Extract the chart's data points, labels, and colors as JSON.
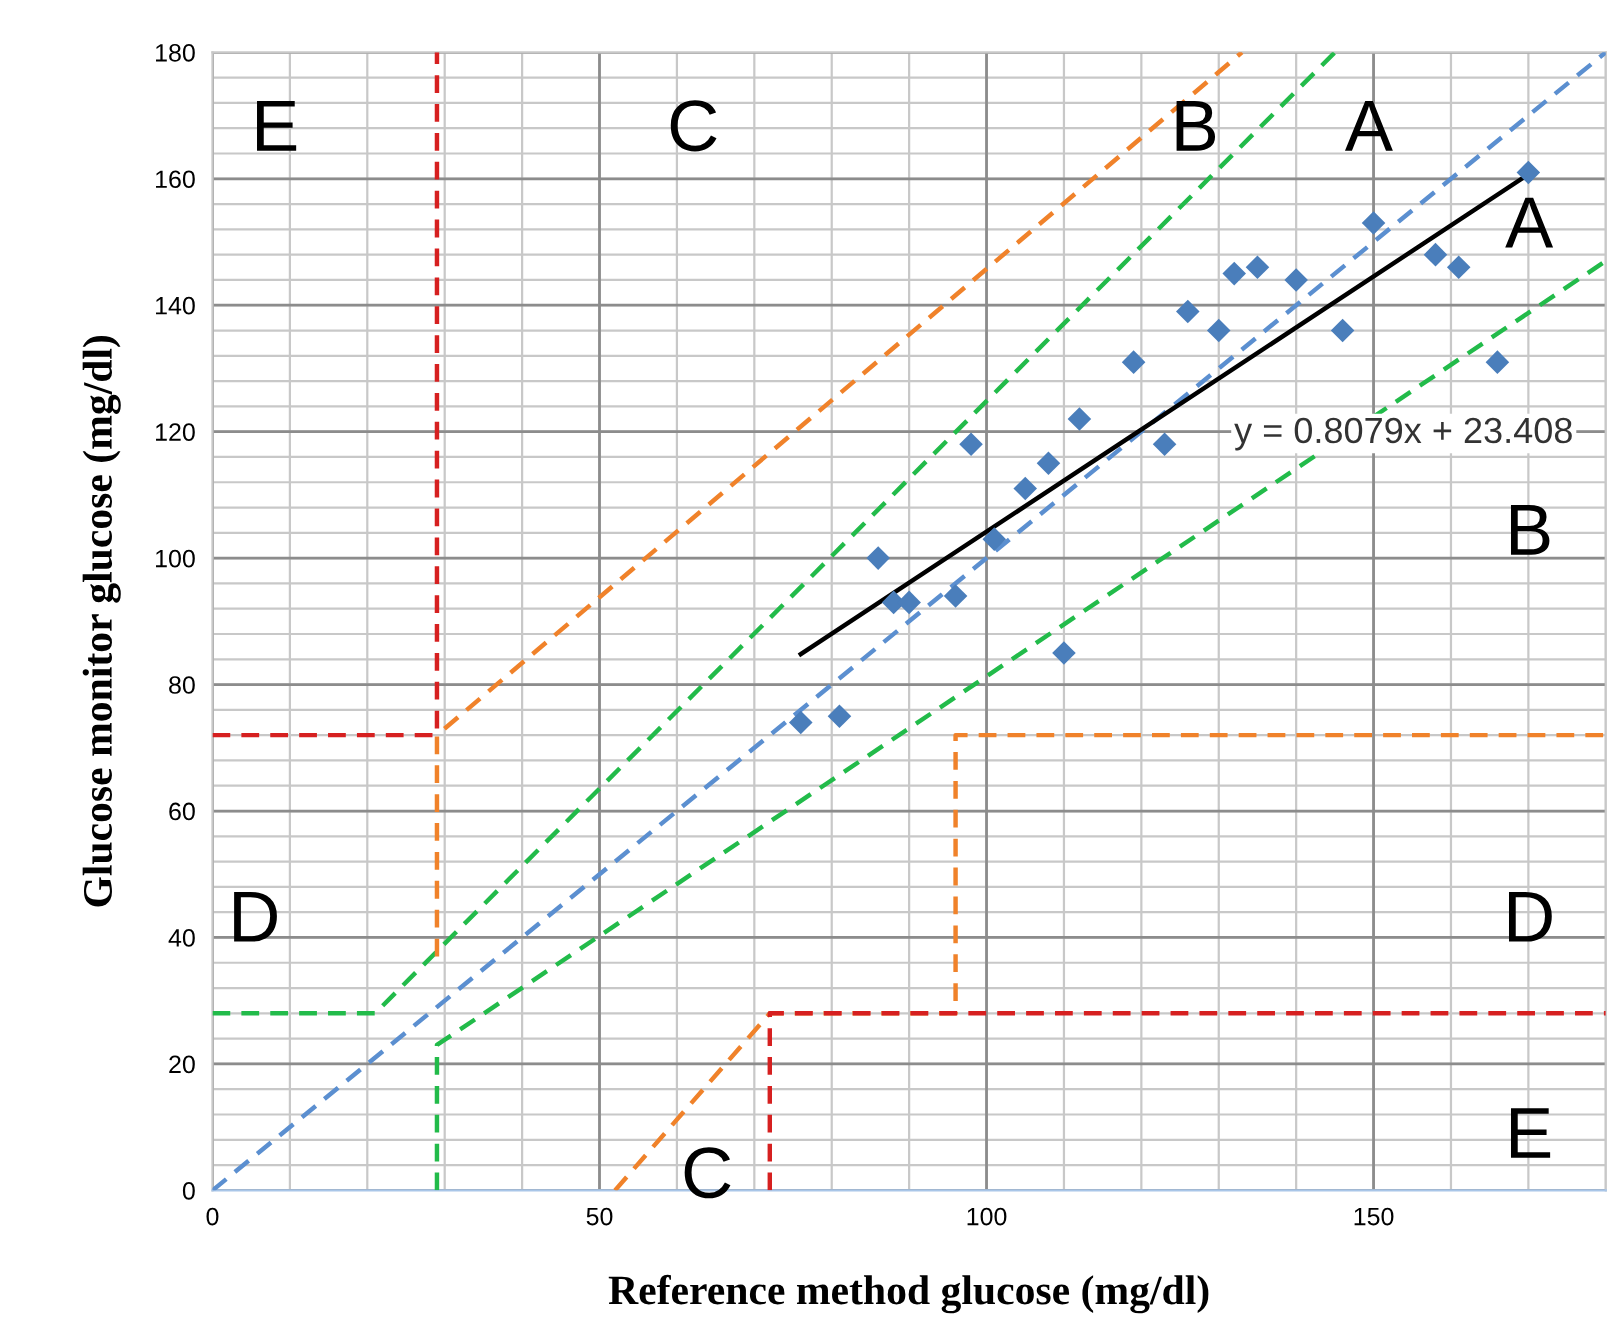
{
  "chart_data": {
    "type": "scatter",
    "xlabel": "Reference method glucose (mg/dl)",
    "ylabel": "Glucose monitor glucose (mg/dl)",
    "xlim": [
      0,
      180
    ],
    "ylim": [
      0,
      180
    ],
    "xticks": [
      0,
      50,
      100,
      150
    ],
    "yticks": [
      0,
      20,
      40,
      60,
      80,
      100,
      120,
      140,
      160,
      180
    ],
    "grid": true,
    "legend": false,
    "series": [
      {
        "type": "line",
        "color": "#5b8fd0",
        "line_style": "dashed",
        "marker": "none",
        "x": [
          0,
          180
        ],
        "values": [
          0,
          180
        ]
      },
      {
        "type": "line",
        "color": "#22bb4a",
        "line_style": "dashed",
        "marker": "none",
        "x": [
          0,
          21,
          145
        ],
        "values": [
          28,
          28,
          180
        ]
      },
      {
        "type": "line",
        "color": "#22bb4a",
        "line_style": "dashed",
        "marker": "none",
        "x": [
          29,
          29,
          180
        ],
        "values": [
          0,
          23,
          147
        ]
      },
      {
        "type": "line",
        "color": "#f0822a",
        "line_style": "dashed",
        "marker": "none",
        "x": [
          29,
          29,
          133
        ],
        "values": [
          37,
          72,
          180
        ]
      },
      {
        "type": "line",
        "color": "#f0822a",
        "line_style": "dashed",
        "marker": "none",
        "x": [
          52,
          72,
          96,
          96,
          180
        ],
        "values": [
          0,
          28,
          28,
          72,
          72
        ]
      },
      {
        "type": "line",
        "color": "#d62020",
        "line_style": "dashed",
        "marker": "none",
        "x": [
          0,
          29,
          29
        ],
        "values": [
          72,
          72,
          180
        ]
      },
      {
        "type": "line",
        "color": "#d62020",
        "line_style": "dashed",
        "marker": "none",
        "x": [
          72,
          72,
          96,
          180
        ],
        "values": [
          0,
          28,
          28,
          28
        ]
      },
      {
        "color": "#4a7ebb",
        "marker": "diamond",
        "x": [
          76,
          81,
          86,
          88,
          90,
          96,
          98,
          101,
          105,
          108,
          110,
          112,
          119,
          123,
          126,
          130,
          132,
          135,
          140,
          146,
          150,
          158,
          161,
          166,
          170
        ],
        "values": [
          74,
          75,
          100,
          93,
          93,
          94,
          118,
          103,
          111,
          115,
          85,
          122,
          131,
          118,
          139,
          136,
          145,
          146,
          144,
          136,
          153,
          148,
          146,
          131,
          161
        ]
      },
      {
        "type": "line",
        "color": "#000000",
        "line_style": "solid",
        "marker": "none",
        "x": [
          76,
          170
        ],
        "values": [
          84.8,
          160.7
        ]
      }
    ],
    "annotations": [
      "E",
      "C",
      "B",
      "A",
      "A",
      "y = 0.8079x + 23.408",
      "B",
      "D",
      "D",
      "E",
      "C"
    ]
  }
}
